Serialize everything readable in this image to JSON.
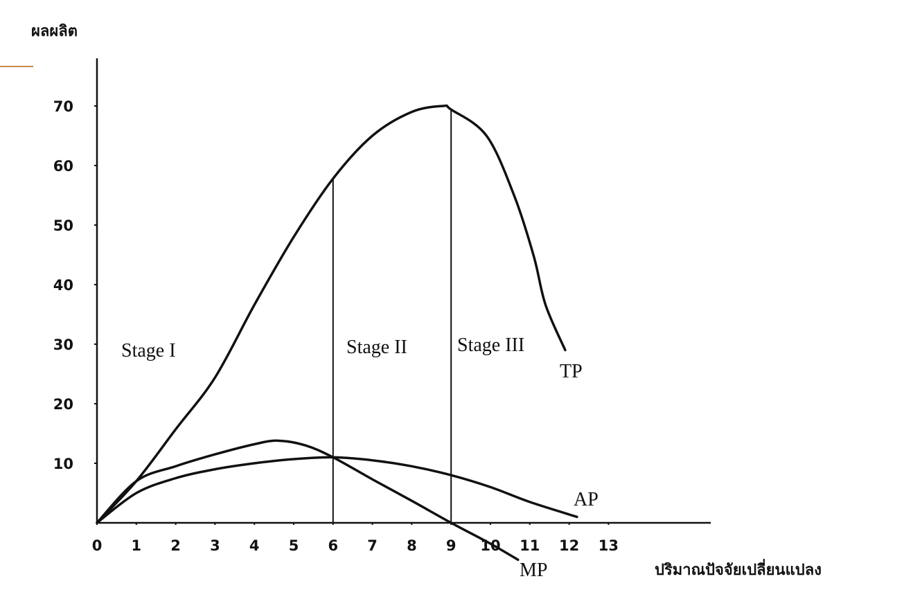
{
  "chart_data": {
    "type": "line",
    "y_label": "ผลผลิต",
    "x_label": "ปริมาณปัจจัยเปลี่ยนแปลง",
    "xlim": [
      0,
      15.6
    ],
    "ylim": [
      -8,
      78
    ],
    "xticks": [
      0,
      1,
      2,
      3,
      4,
      5,
      6,
      7,
      8,
      9,
      10,
      11,
      12,
      13
    ],
    "yticks": [
      10,
      20,
      30,
      40,
      50,
      60,
      70
    ],
    "vlines": [
      6,
      9
    ],
    "annotations": [
      "Stage I",
      "Stage II",
      "Stage III"
    ],
    "series": [
      {
        "name": "TP",
        "color": "#111111",
        "x": [
          0,
          1,
          2,
          3,
          4,
          5,
          6,
          7,
          8,
          8.8,
          9,
          9.9,
          10.6,
          11.1,
          11.4,
          11.9
        ],
        "values": [
          0,
          7,
          15.7,
          24.4,
          36.6,
          48,
          57.8,
          65,
          69,
          70,
          69.4,
          65,
          55,
          44.8,
          36.6,
          29
        ]
      },
      {
        "name": "AP",
        "color": "#111111",
        "x": [
          0,
          1,
          2,
          3,
          4,
          5,
          6,
          7,
          8,
          9,
          10,
          11,
          12.2
        ],
        "values": [
          0,
          5,
          7.5,
          9,
          10,
          10.7,
          11,
          10.5,
          9.5,
          8,
          6,
          3.5,
          1
        ]
      },
      {
        "name": "MP",
        "color": "#111111",
        "x": [
          0,
          1,
          2,
          3,
          4,
          4.6,
          5.3,
          6,
          7,
          8,
          9,
          10,
          10.7
        ],
        "values": [
          0,
          7,
          9.5,
          11.5,
          13.2,
          13.8,
          13,
          11,
          7.3,
          3.7,
          0,
          -3.5,
          -6.2
        ]
      }
    ]
  }
}
